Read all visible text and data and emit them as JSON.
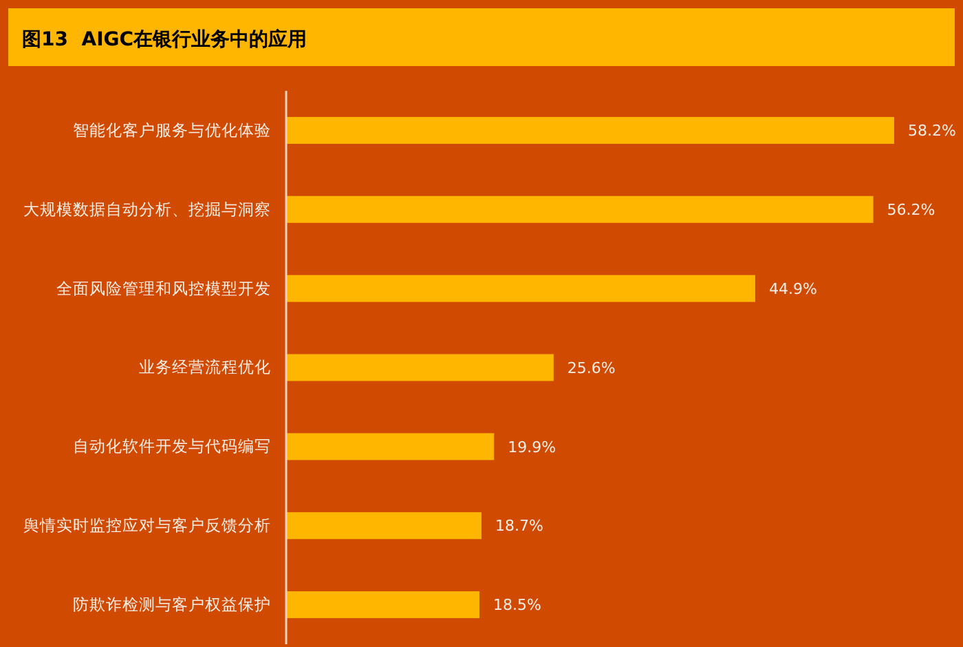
{
  "chart_data": {
    "type": "bar",
    "orientation": "horizontal",
    "title": "图13  AIGC在银行业务中的应用",
    "categories": [
      "智能化客户服务与优化体验",
      "大规模数据自动分析、挖掘与洞察",
      "全面风险管理和风控模型开发",
      "业务经营流程优化",
      "自动化软件开发与代码编写",
      "舆情实时监控应对与客户反馈分析",
      "防欺诈检测与客户权益保护"
    ],
    "values": [
      58.2,
      56.2,
      44.9,
      25.6,
      19.9,
      18.7,
      18.5
    ],
    "value_labels": [
      "58.2%",
      "56.2%",
      "44.9%",
      "25.6%",
      "19.9%",
      "18.7%",
      "18.5%"
    ],
    "color": "#ffb600"
  }
}
